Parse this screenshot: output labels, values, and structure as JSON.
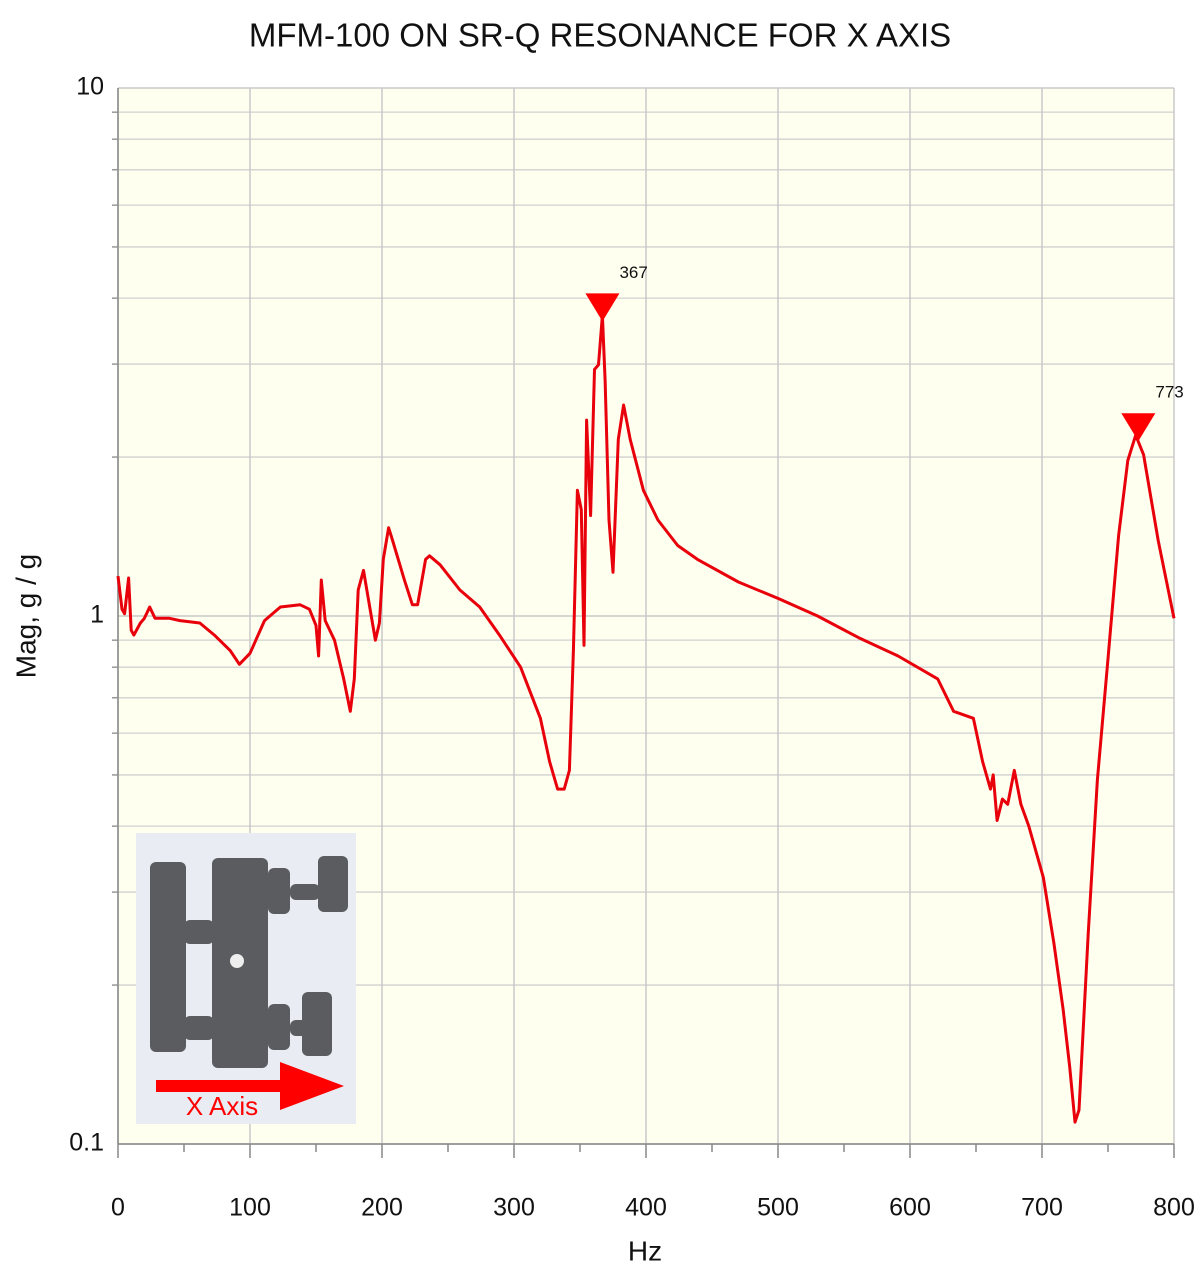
{
  "chart_data": {
    "type": "line",
    "title": "MFM-100 ON SR-Q RESONANCE FOR X AXIS",
    "x_label": "Hz",
    "y_label": "Mag, g / g",
    "xlim": [
      0,
      800
    ],
    "xticks": [
      0,
      100,
      200,
      300,
      400,
      500,
      600,
      700,
      800
    ],
    "x_minor_ticks": [
      50,
      150,
      250,
      350,
      450,
      550,
      650,
      750
    ],
    "ylim": [
      0.1,
      10
    ],
    "yticks": [
      0.1,
      1,
      10
    ],
    "y_minor_ticks": [
      0.2,
      0.3,
      0.4,
      0.5,
      0.6,
      0.7,
      0.8,
      0.9,
      2,
      3,
      4,
      5,
      6,
      7,
      8,
      9
    ],
    "log_y": true,
    "grid": true,
    "plot_background": "#fffff0",
    "series": [
      {
        "name": "X axis",
        "color": "#e8000b",
        "x": [
          0,
          3,
          5,
          8,
          10,
          12,
          17,
          20,
          24,
          28,
          39,
          47,
          62,
          73,
          85,
          92,
          100,
          111,
          123,
          138,
          145,
          150,
          152,
          154,
          157,
          164,
          171,
          176,
          179,
          182,
          186,
          191,
          195,
          198,
          201,
          205,
          208,
          217,
          223,
          227,
          233,
          236,
          244,
          259,
          274,
          289,
          305,
          320,
          327,
          333,
          338,
          342,
          345,
          348,
          351,
          353,
          355,
          358,
          361,
          364,
          367,
          369,
          372,
          375,
          379,
          383,
          388,
          398,
          409,
          424,
          439,
          470,
          500,
          530,
          561,
          591,
          621,
          633,
          648,
          655,
          661,
          663,
          666,
          670,
          674,
          679,
          684,
          690,
          701,
          709,
          716,
          721,
          725,
          728,
          735,
          742,
          750,
          758,
          765,
          771,
          777,
          788,
          800
        ],
        "values": [
          1.19,
          1.03,
          1.01,
          1.18,
          0.94,
          0.92,
          0.97,
          0.99,
          1.04,
          0.99,
          0.99,
          0.98,
          0.97,
          0.92,
          0.86,
          0.81,
          0.85,
          0.98,
          1.04,
          1.05,
          1.03,
          0.96,
          0.84,
          1.17,
          0.98,
          0.9,
          0.76,
          0.66,
          0.76,
          1.12,
          1.22,
          1.03,
          0.9,
          0.97,
          1.28,
          1.47,
          1.39,
          1.17,
          1.05,
          1.05,
          1.28,
          1.3,
          1.25,
          1.12,
          1.04,
          0.92,
          0.8,
          0.64,
          0.53,
          0.47,
          0.47,
          0.51,
          0.86,
          1.73,
          1.59,
          0.88,
          2.35,
          1.55,
          2.93,
          2.99,
          3.71,
          2.8,
          1.52,
          1.21,
          2.16,
          2.51,
          2.16,
          1.73,
          1.52,
          1.36,
          1.28,
          1.16,
          1.08,
          1.0,
          0.91,
          0.84,
          0.76,
          0.66,
          0.64,
          0.53,
          0.47,
          0.5,
          0.41,
          0.45,
          0.44,
          0.51,
          0.44,
          0.4,
          0.32,
          0.24,
          0.18,
          0.14,
          0.11,
          0.116,
          0.25,
          0.49,
          0.83,
          1.42,
          1.97,
          2.2,
          2.02,
          1.39,
          0.99
        ]
      }
    ],
    "peaks": {
      "x": [
        367,
        773
      ],
      "values": [
        3.71,
        2.2
      ],
      "color": "#ff0000"
    },
    "inset_label": "X Axis"
  }
}
